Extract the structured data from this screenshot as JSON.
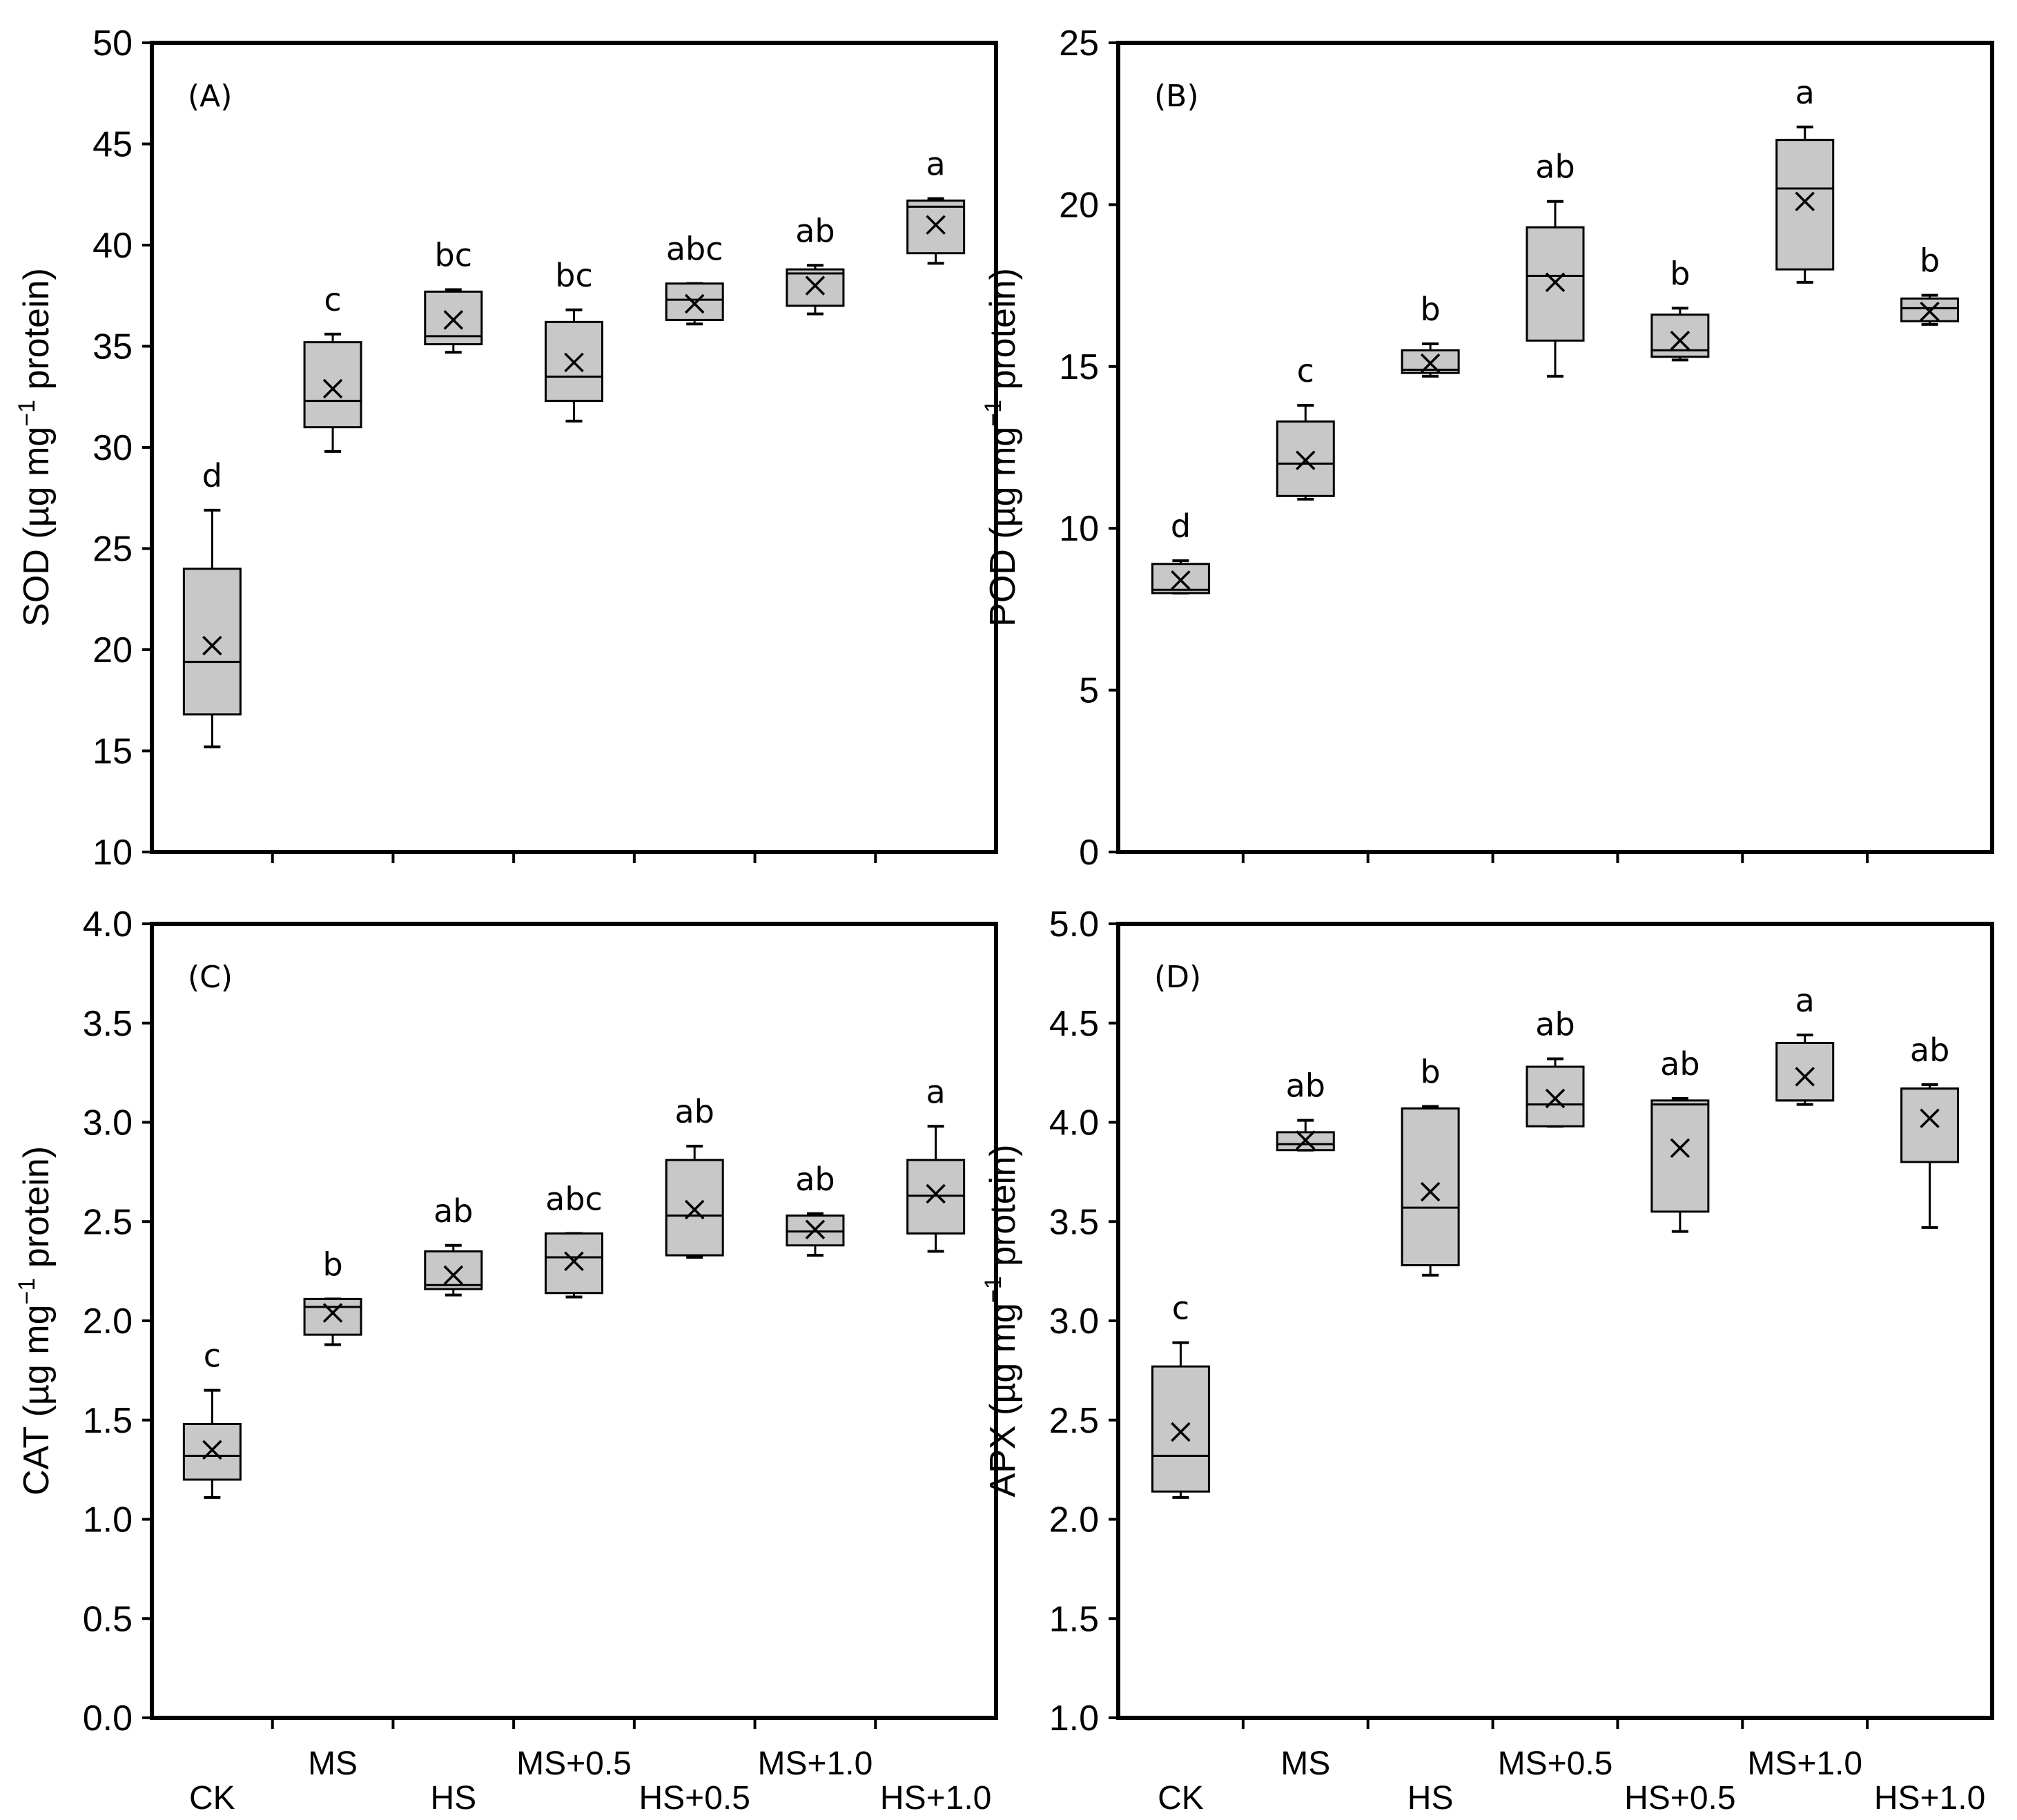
{
  "categories": [
    "CK",
    "MS",
    "HS",
    "MS+0.5",
    "HS+0.5",
    "MS+1.0",
    "HS+1.0"
  ],
  "colors": {
    "box_fill": "#c8c8c8",
    "line": "#000000"
  },
  "chart_data": [
    {
      "type": "box",
      "panel": "(A)",
      "ylabel_main": "SOD (µg mg",
      "ylabel_sup": "−1",
      "ylabel_end": " protein)",
      "ylim": [
        10,
        50
      ],
      "yticks": [
        "10",
        "15",
        "20",
        "25",
        "30",
        "35",
        "40",
        "45",
        "50"
      ],
      "boxes": [
        {
          "min": 15.2,
          "q1": 16.8,
          "median": 19.4,
          "q3": 24.0,
          "max": 26.9,
          "mean": 20.2,
          "letter": "d"
        },
        {
          "min": 29.8,
          "q1": 31.0,
          "median": 32.3,
          "q3": 35.2,
          "max": 35.6,
          "mean": 32.9,
          "letter": "c"
        },
        {
          "min": 34.7,
          "q1": 35.1,
          "median": 35.5,
          "q3": 37.7,
          "max": 37.8,
          "mean": 36.3,
          "letter": "bc"
        },
        {
          "min": 31.3,
          "q1": 32.3,
          "median": 33.5,
          "q3": 36.2,
          "max": 36.8,
          "mean": 34.2,
          "letter": "bc"
        },
        {
          "min": 36.1,
          "q1": 36.3,
          "median": 37.3,
          "q3": 38.1,
          "max": 38.1,
          "mean": 37.1,
          "letter": "abc"
        },
        {
          "min": 36.6,
          "q1": 37.0,
          "median": 38.6,
          "q3": 38.8,
          "max": 39.0,
          "mean": 38.0,
          "letter": "ab"
        },
        {
          "min": 39.1,
          "q1": 39.6,
          "median": 41.9,
          "q3": 42.2,
          "max": 42.3,
          "mean": 41.0,
          "letter": "a"
        }
      ]
    },
    {
      "type": "box",
      "panel": "(B)",
      "ylabel_main": "POD (µg mg",
      "ylabel_sup": "−1",
      "ylabel_end": " protein)",
      "ylim": [
        0,
        25
      ],
      "yticks": [
        "0",
        "5",
        "10",
        "15",
        "20",
        "25"
      ],
      "boxes": [
        {
          "min": 8.0,
          "q1": 8.0,
          "median": 8.1,
          "q3": 8.9,
          "max": 9.0,
          "mean": 8.4,
          "letter": "d"
        },
        {
          "min": 10.9,
          "q1": 11.0,
          "median": 12.0,
          "q3": 13.3,
          "max": 13.8,
          "mean": 12.1,
          "letter": "c"
        },
        {
          "min": 14.7,
          "q1": 14.8,
          "median": 14.9,
          "q3": 15.5,
          "max": 15.7,
          "mean": 15.1,
          "letter": "b"
        },
        {
          "min": 14.7,
          "q1": 15.8,
          "median": 17.8,
          "q3": 19.3,
          "max": 20.1,
          "mean": 17.6,
          "letter": "ab"
        },
        {
          "min": 15.2,
          "q1": 15.3,
          "median": 15.5,
          "q3": 16.6,
          "max": 16.8,
          "mean": 15.8,
          "letter": "b"
        },
        {
          "min": 17.6,
          "q1": 18.0,
          "median": 20.5,
          "q3": 22.0,
          "max": 22.4,
          "mean": 20.1,
          "letter": "a"
        },
        {
          "min": 16.3,
          "q1": 16.4,
          "median": 16.8,
          "q3": 17.1,
          "max": 17.2,
          "mean": 16.7,
          "letter": "b"
        }
      ]
    },
    {
      "type": "box",
      "panel": "(C)",
      "ylabel_main": "CAT (µg mg",
      "ylabel_sup": "−1",
      "ylabel_end": " protein)",
      "ylim": [
        0,
        4
      ],
      "yticks": [
        "0.0",
        "0.5",
        "1.0",
        "1.5",
        "2.0",
        "2.5",
        "3.0",
        "3.5",
        "4.0"
      ],
      "boxes": [
        {
          "min": 1.11,
          "q1": 1.2,
          "median": 1.32,
          "q3": 1.48,
          "max": 1.65,
          "mean": 1.35,
          "letter": "c"
        },
        {
          "min": 1.88,
          "q1": 1.93,
          "median": 2.07,
          "q3": 2.11,
          "max": 2.11,
          "mean": 2.04,
          "letter": "b"
        },
        {
          "min": 2.13,
          "q1": 2.16,
          "median": 2.18,
          "q3": 2.35,
          "max": 2.38,
          "mean": 2.23,
          "letter": "ab"
        },
        {
          "min": 2.12,
          "q1": 2.14,
          "median": 2.32,
          "q3": 2.44,
          "max": 2.44,
          "mean": 2.3,
          "letter": "abc"
        },
        {
          "min": 2.32,
          "q1": 2.33,
          "median": 2.53,
          "q3": 2.81,
          "max": 2.88,
          "mean": 2.56,
          "letter": "ab"
        },
        {
          "min": 2.33,
          "q1": 2.38,
          "median": 2.45,
          "q3": 2.53,
          "max": 2.54,
          "mean": 2.46,
          "letter": "ab"
        },
        {
          "min": 2.35,
          "q1": 2.44,
          "median": 2.63,
          "q3": 2.81,
          "max": 2.98,
          "mean": 2.64,
          "letter": "a"
        }
      ]
    },
    {
      "type": "box",
      "panel": "(D)",
      "ylabel_main": "APX (µg mg",
      "ylabel_sup": "−1",
      "ylabel_end": " protein)",
      "ylim": [
        1,
        5
      ],
      "yticks": [
        "1.0",
        "1.5",
        "2.0",
        "2.5",
        "3.0",
        "3.5",
        "4.0",
        "4.5",
        "5.0"
      ],
      "boxes": [
        {
          "min": 2.11,
          "q1": 2.14,
          "median": 2.32,
          "q3": 2.77,
          "max": 2.89,
          "mean": 2.44,
          "letter": "c"
        },
        {
          "min": 3.86,
          "q1": 3.86,
          "median": 3.89,
          "q3": 3.95,
          "max": 4.01,
          "mean": 3.91,
          "letter": "ab"
        },
        {
          "min": 3.23,
          "q1": 3.28,
          "median": 3.57,
          "q3": 4.07,
          "max": 4.08,
          "mean": 3.65,
          "letter": "b"
        },
        {
          "min": 3.98,
          "q1": 3.98,
          "median": 4.09,
          "q3": 4.28,
          "max": 4.32,
          "mean": 4.12,
          "letter": "ab"
        },
        {
          "min": 3.45,
          "q1": 3.55,
          "median": 4.09,
          "q3": 4.11,
          "max": 4.12,
          "mean": 3.87,
          "letter": "ab"
        },
        {
          "min": 4.09,
          "q1": 4.11,
          "median": 4.11,
          "q3": 4.4,
          "max": 4.44,
          "mean": 4.23,
          "letter": "a"
        },
        {
          "min": 3.47,
          "q1": 3.8,
          "median": 4.17,
          "q3": 4.17,
          "max": 4.19,
          "mean": 4.02,
          "letter": "ab"
        }
      ]
    }
  ]
}
